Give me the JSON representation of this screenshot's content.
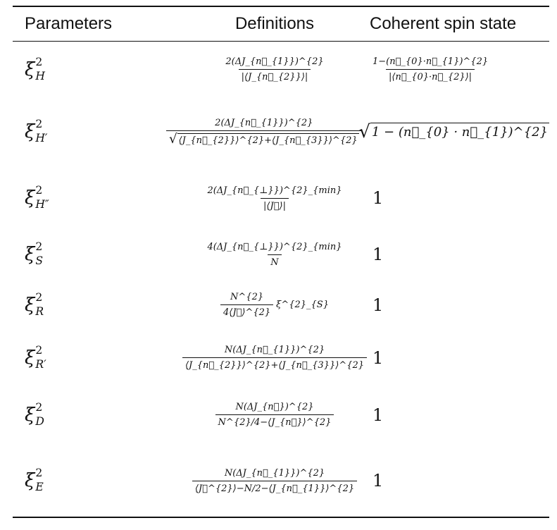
{
  "headers": [
    "Parameters",
    "Definitions",
    "Coherent spin state"
  ],
  "rows": [
    {
      "param": {
        "base": "ξ",
        "sup": "2",
        "sub": "H"
      },
      "def": [
        {
          "type": "frac",
          "num": "2(ΔJ_{n⃗_{1}})^{2}",
          "den": "|⟨J_{n⃗_{2}}⟩|"
        }
      ],
      "css": [
        {
          "type": "frac",
          "num": "1−(n⃗_{0}·n⃗_{1})^{2}",
          "den": "|⟨n⃗_{0}·n⃗_{2}⟩|"
        }
      ]
    },
    {
      "param": {
        "base": "ξ",
        "sup": "2",
        "sub": "H′"
      },
      "def": [
        {
          "type": "frac",
          "num": "2(ΔJ_{n⃗_{1}})^{2}",
          "den": "⟨J_{n⃗_{2}}⟩^{2}+⟨J_{n⃗_{3}}⟩^{2}",
          "den_sqrt": true
        }
      ],
      "css": [
        {
          "type": "sqrt",
          "text": "1 − (n⃗_{0} · n⃗_{1})^{2}"
        }
      ]
    },
    {
      "param": {
        "base": "ξ",
        "sup": "2",
        "sub": "H″"
      },
      "def": [
        {
          "type": "frac",
          "num": "2(ΔJ_{n⃗_{⊥}})^{2}_{min}",
          "den": "|⟨J⃗⟩|"
        }
      ],
      "css": [
        {
          "type": "text",
          "text": "1"
        }
      ]
    },
    {
      "param": {
        "base": "ξ",
        "sup": "2",
        "sub": "S"
      },
      "def": [
        {
          "type": "frac",
          "num": "4(ΔJ_{n⃗_{⊥}})^{2}_{min}",
          "den": "N"
        }
      ],
      "css": [
        {
          "type": "text",
          "text": "1"
        }
      ]
    },
    {
      "param": {
        "base": "ξ",
        "sup": "2",
        "sub": "R"
      },
      "def": [
        {
          "type": "frac",
          "num": "N^{2}",
          "den": "4⟨J⃗⟩^{2}"
        },
        {
          "type": "text",
          "text": " ξ^{2}_{S}"
        }
      ],
      "css": [
        {
          "type": "text",
          "text": "1"
        }
      ]
    },
    {
      "param": {
        "base": "ξ",
        "sup": "2",
        "sub": "R′"
      },
      "def": [
        {
          "type": "frac",
          "num": "N(ΔJ_{n⃗_{1}})^{2}",
          "den": "⟨J_{n⃗_{2}}⟩^{2}+⟨J_{n⃗_{3}}⟩^{2}"
        }
      ],
      "css": [
        {
          "type": "text",
          "text": "1"
        }
      ]
    },
    {
      "param": {
        "base": "ξ",
        "sup": "2",
        "sub": "D"
      },
      "def": [
        {
          "type": "frac",
          "num": "N(ΔJ_{n⃗})^{2}",
          "den": "N^{2}/4−⟨J_{n⃗}⟩^{2}"
        }
      ],
      "css": [
        {
          "type": "text",
          "text": "1"
        }
      ]
    },
    {
      "param": {
        "base": "ξ",
        "sup": "2",
        "sub": "E"
      },
      "def": [
        {
          "type": "frac",
          "num": "N(ΔJ_{n⃗_{1}})^{2}",
          "den": "⟨J⃗^{2}⟩−N/2−⟨J_{n⃗_{1}}⟩^{2}"
        }
      ],
      "css": [
        {
          "type": "text",
          "text": "1"
        }
      ]
    }
  ]
}
